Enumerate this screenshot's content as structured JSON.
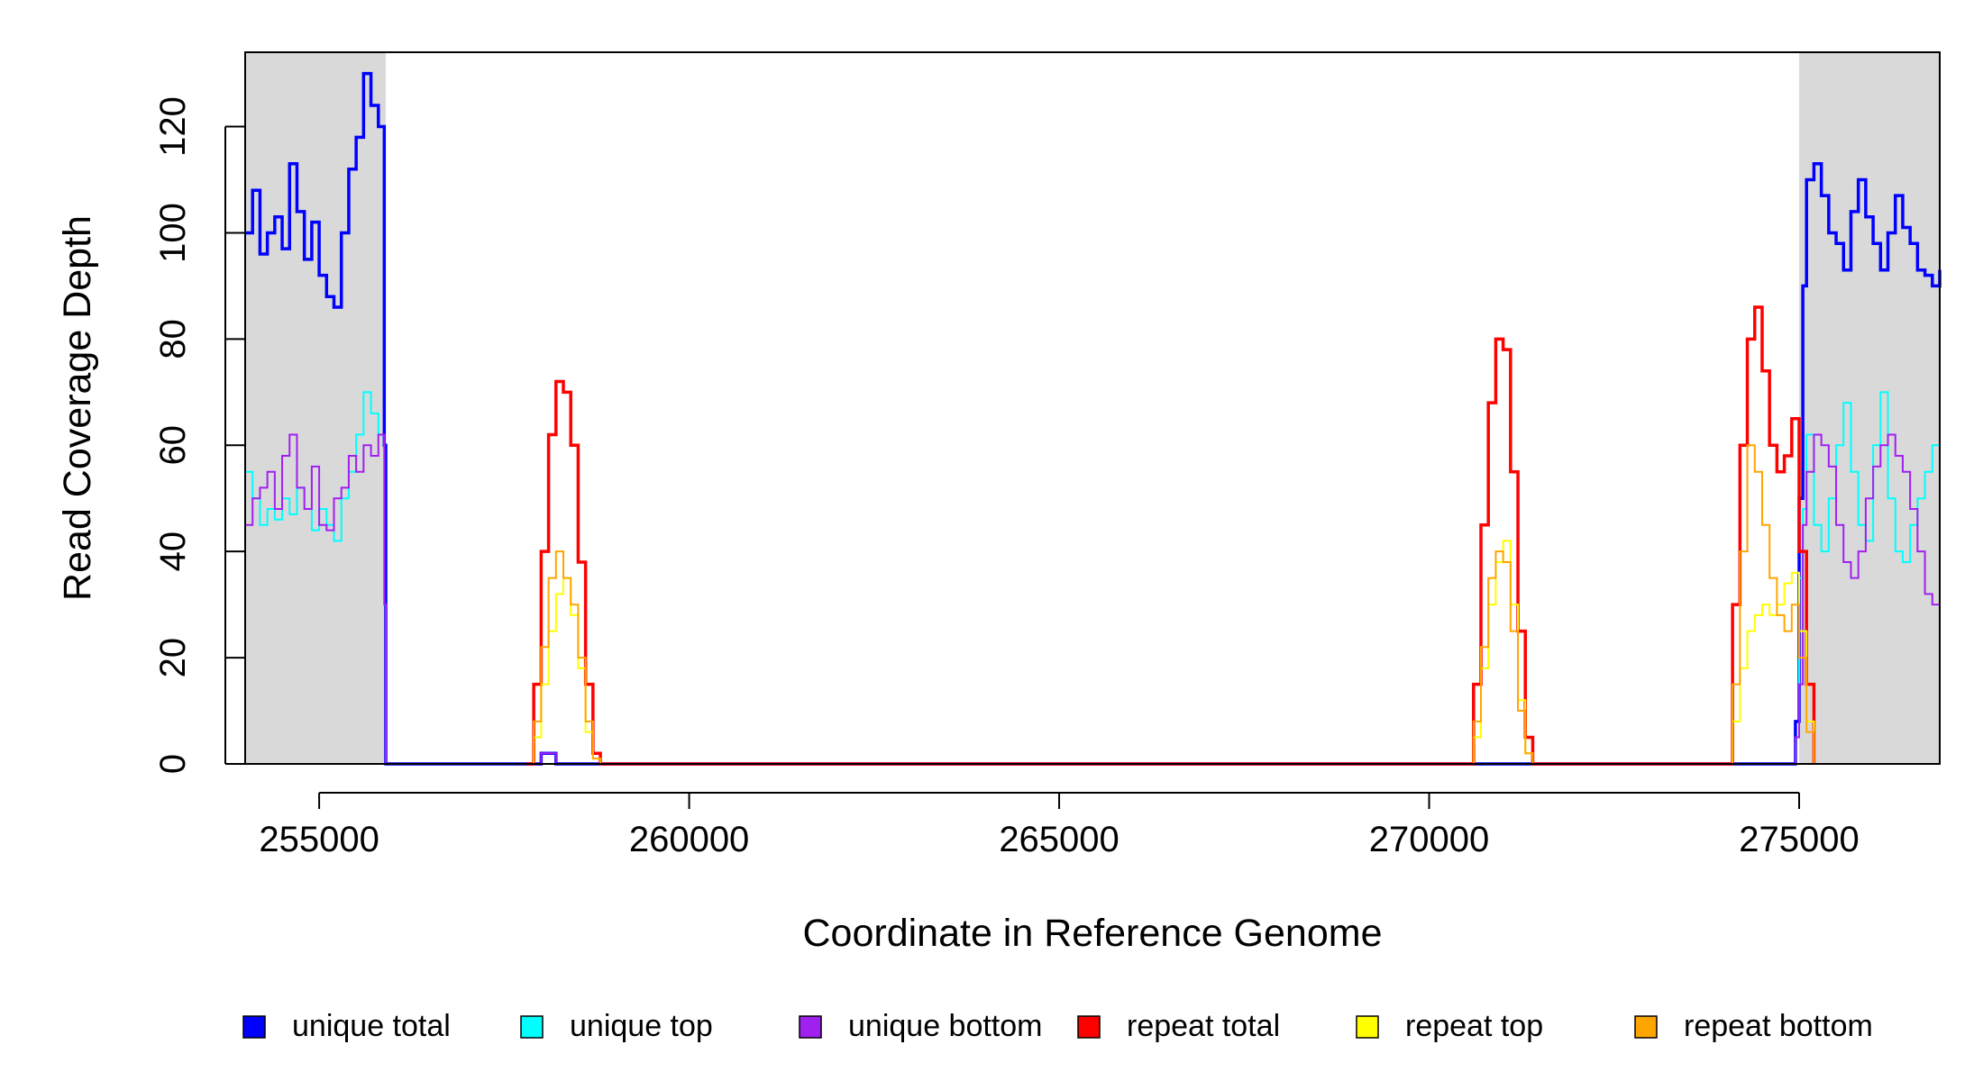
{
  "chart_data": {
    "type": "line",
    "title": "",
    "xlabel": "Coordinate in Reference Genome",
    "ylabel": "Read Coverage Depth",
    "xlim": [
      254000,
      276900
    ],
    "ylim": [
      0,
      134
    ],
    "x_ticks": [
      "255000",
      "260000",
      "265000",
      "270000",
      "275000"
    ],
    "y_ticks": [
      "0",
      "20",
      "40",
      "60",
      "80",
      "100",
      "120"
    ],
    "shaded_regions": [
      [
        254000,
        255900
      ],
      [
        275000,
        276900
      ]
    ],
    "shade_color": "#d9d9d9",
    "legend_position": "bottom",
    "series": [
      {
        "name": "unique total",
        "color": "#0000ff",
        "x": [
          254000,
          254100,
          254200,
          254300,
          254400,
          254500,
          254600,
          254700,
          254800,
          254900,
          255000,
          255100,
          255200,
          255300,
          255400,
          255500,
          255600,
          255700,
          255800,
          255880,
          255900,
          256000,
          257900,
          258000,
          258100,
          258200,
          258300,
          274000,
          274900,
          274950,
          275000,
          275050,
          275100,
          275200,
          275300,
          275400,
          275500,
          275600,
          275700,
          275800,
          275900,
          276000,
          276100,
          276200,
          276300,
          276400,
          276500,
          276600,
          276700,
          276800,
          276900
        ],
        "y": [
          100,
          108,
          96,
          100,
          103,
          97,
          113,
          104,
          95,
          102,
          92,
          88,
          86,
          100,
          112,
          118,
          130,
          124,
          120,
          60,
          0,
          0,
          0,
          2,
          2,
          0,
          0,
          0,
          0,
          8,
          50,
          90,
          110,
          113,
          107,
          100,
          98,
          93,
          104,
          110,
          103,
          98,
          93,
          100,
          107,
          101,
          98,
          93,
          92,
          90,
          93
        ]
      },
      {
        "name": "unique top",
        "color": "#00ffff",
        "x": [
          254000,
          254100,
          254200,
          254300,
          254400,
          254500,
          254600,
          254700,
          254800,
          254900,
          255000,
          255100,
          255200,
          255300,
          255400,
          255500,
          255600,
          255700,
          255800,
          255880,
          255900,
          256000,
          274950,
          275000,
          275050,
          275100,
          275200,
          275300,
          275400,
          275500,
          275600,
          275700,
          275800,
          275900,
          276000,
          276100,
          276200,
          276300,
          276400,
          276500,
          276600,
          276700,
          276800,
          276900
        ],
        "y": [
          55,
          50,
          45,
          48,
          46,
          50,
          47,
          52,
          48,
          44,
          48,
          45,
          42,
          50,
          55,
          62,
          70,
          66,
          62,
          30,
          0,
          0,
          5,
          35,
          48,
          62,
          45,
          40,
          50,
          60,
          68,
          55,
          45,
          42,
          60,
          70,
          50,
          40,
          38,
          45,
          50,
          55,
          60,
          62
        ]
      },
      {
        "name": "unique bottom",
        "color": "#a020f0",
        "x": [
          254000,
          254100,
          254200,
          254300,
          254400,
          254500,
          254600,
          254700,
          254800,
          254900,
          255000,
          255100,
          255200,
          255300,
          255400,
          255500,
          255600,
          255700,
          255800,
          255880,
          255900,
          256000,
          257900,
          258000,
          258100,
          258200,
          258300,
          274950,
          275000,
          275050,
          275100,
          275200,
          275300,
          275400,
          275500,
          275600,
          275700,
          275800,
          275900,
          276000,
          276100,
          276200,
          276300,
          276400,
          276500,
          276600,
          276700,
          276800,
          276900
        ],
        "y": [
          45,
          50,
          52,
          55,
          48,
          58,
          62,
          52,
          48,
          56,
          45,
          44,
          50,
          52,
          58,
          55,
          60,
          58,
          62,
          30,
          0,
          0,
          0,
          2,
          2,
          0,
          0,
          5,
          15,
          45,
          55,
          62,
          60,
          56,
          45,
          38,
          35,
          40,
          50,
          56,
          60,
          62,
          58,
          55,
          48,
          40,
          32,
          30,
          28
        ]
      },
      {
        "name": "repeat total",
        "color": "#ff0000",
        "x": [
          257800,
          257900,
          258000,
          258100,
          258200,
          258300,
          258400,
          258500,
          258600,
          258700,
          258800,
          270500,
          270600,
          270700,
          270800,
          270900,
          271000,
          271100,
          271200,
          271300,
          271400,
          274000,
          274100,
          274200,
          274300,
          274400,
          274500,
          274600,
          274700,
          274800,
          274900,
          275000,
          275100,
          275200
        ],
        "y": [
          0,
          15,
          40,
          62,
          72,
          70,
          60,
          38,
          15,
          2,
          0,
          0,
          15,
          45,
          68,
          80,
          78,
          55,
          25,
          5,
          0,
          0,
          30,
          60,
          80,
          86,
          74,
          60,
          55,
          58,
          65,
          40,
          15,
          0
        ]
      },
      {
        "name": "repeat top",
        "color": "#ffff00",
        "x": [
          257800,
          257900,
          258000,
          258100,
          258200,
          258300,
          258400,
          258500,
          258600,
          258700,
          258800,
          270500,
          270600,
          270700,
          270800,
          270900,
          271000,
          271100,
          271200,
          271300,
          271400,
          274000,
          274100,
          274200,
          274300,
          274400,
          274500,
          274600,
          274700,
          274800,
          274900,
          275000,
          275100,
          275200
        ],
        "y": [
          0,
          5,
          15,
          25,
          32,
          35,
          28,
          18,
          6,
          1,
          0,
          0,
          5,
          18,
          30,
          38,
          42,
          30,
          12,
          2,
          0,
          0,
          8,
          18,
          25,
          28,
          30,
          28,
          30,
          34,
          36,
          25,
          8,
          0
        ]
      },
      {
        "name": "repeat bottom",
        "color": "#ffa500",
        "x": [
          257800,
          257900,
          258000,
          258100,
          258200,
          258300,
          258400,
          258500,
          258600,
          258700,
          258800,
          270500,
          270600,
          270700,
          270800,
          270900,
          271000,
          271100,
          271200,
          271300,
          271400,
          274000,
          274100,
          274200,
          274300,
          274400,
          274500,
          274600,
          274700,
          274800,
          274900,
          275000,
          275100,
          275200
        ],
        "y": [
          0,
          8,
          22,
          35,
          40,
          35,
          30,
          20,
          8,
          1,
          0,
          0,
          8,
          22,
          35,
          40,
          38,
          25,
          10,
          2,
          0,
          0,
          15,
          40,
          60,
          55,
          45,
          35,
          28,
          25,
          30,
          20,
          6,
          0
        ]
      }
    ]
  }
}
